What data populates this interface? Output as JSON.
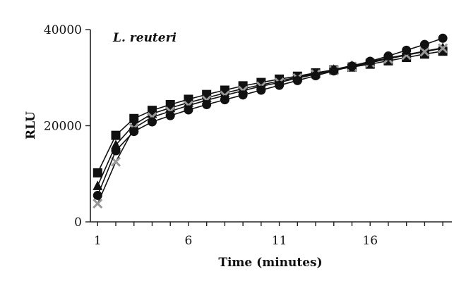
{
  "chart_data": {
    "type": "line",
    "title": "",
    "xlabel": "Time (minutes)",
    "ylabel": "RLU",
    "annotation": "L. reuteri",
    "xlim": [
      0.6,
      20.5
    ],
    "ylim": [
      0,
      40000
    ],
    "xticks": [
      1,
      6,
      11,
      16
    ],
    "yticks": [
      0,
      20000,
      40000
    ],
    "grid": false,
    "x": [
      1,
      2,
      3,
      4,
      5,
      6,
      7,
      8,
      9,
      10,
      11,
      12,
      13,
      14,
      15,
      16,
      17,
      18,
      19,
      20
    ],
    "series": [
      {
        "marker": "square",
        "color": "#111111",
        "values": [
          10200,
          18000,
          21500,
          23200,
          24400,
          25500,
          26500,
          27400,
          28300,
          29000,
          29700,
          30300,
          31000,
          31600,
          32200,
          32800,
          33500,
          34200,
          34900,
          35500
        ]
      },
      {
        "marker": "triangle",
        "color": "#111111",
        "values": [
          7500,
          16000,
          20200,
          22500,
          23700,
          24800,
          25800,
          26800,
          27700,
          28500,
          29300,
          30100,
          30900,
          31700,
          32500,
          33300,
          34100,
          34800,
          35500,
          36200
        ]
      },
      {
        "marker": "x",
        "color": "#999999",
        "values": [
          3800,
          12500,
          19500,
          21800,
          23000,
          24200,
          25300,
          26300,
          27300,
          28200,
          29000,
          29900,
          30700,
          31500,
          32300,
          33100,
          33900,
          34700,
          35400,
          36100
        ]
      },
      {
        "marker": "circle",
        "color": "#111111",
        "values": [
          5500,
          14800,
          18800,
          20800,
          22100,
          23300,
          24400,
          25400,
          26400,
          27400,
          28400,
          29400,
          30400,
          31400,
          32400,
          33400,
          34500,
          35700,
          36900,
          38200
        ]
      }
    ]
  }
}
